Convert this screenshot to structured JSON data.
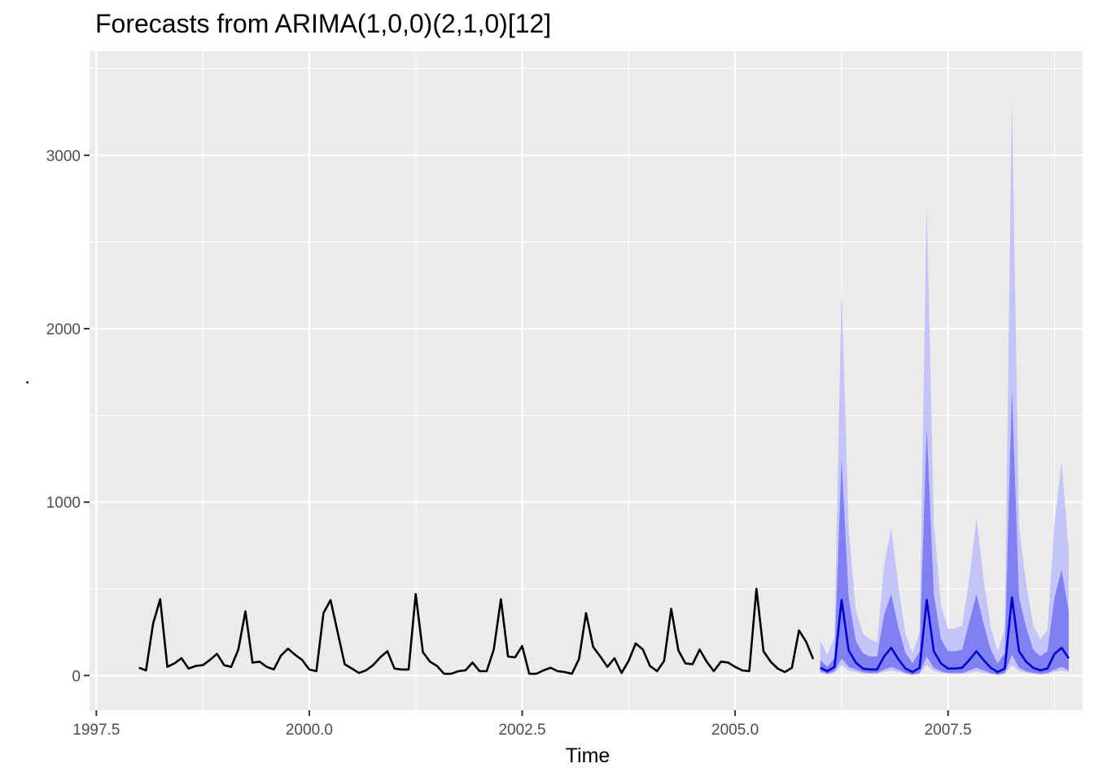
{
  "chart_data": {
    "type": "line",
    "title": "Forecasts from ARIMA(1,0,0)(2,1,0)[12]",
    "xlabel": "Time",
    "ylabel": ".",
    "xlim": [
      1997.42,
      2009.08
    ],
    "ylim": [
      -200,
      3600
    ],
    "x_ticks": [
      1997.5,
      2000.0,
      2002.5,
      2005.0,
      2007.5
    ],
    "x_tick_labels": [
      "1997.5",
      "2000.0",
      "2002.5",
      "2005.0",
      "2007.5"
    ],
    "y_ticks": [
      0,
      1000,
      2000,
      3000
    ],
    "y_tick_labels": [
      "0",
      "1000",
      "2000",
      "3000"
    ],
    "grid": true,
    "legend": "none",
    "colors": {
      "panel": "#ebebeb",
      "grid": "#ffffff",
      "history_line": "#000000",
      "forecast_line": "#0000cc",
      "band_95": "#c4c4f8",
      "band_80": "#8080f0"
    },
    "history": {
      "name": "",
      "start": 1998.0,
      "step": 0.0833333,
      "values": [
        45,
        30,
        300,
        440,
        50,
        70,
        100,
        40,
        55,
        60,
        90,
        125,
        60,
        50,
        150,
        370,
        75,
        80,
        50,
        35,
        115,
        155,
        120,
        90,
        35,
        25,
        360,
        435,
        250,
        65,
        40,
        15,
        30,
        60,
        105,
        140,
        40,
        35,
        35,
        470,
        135,
        80,
        55,
        10,
        10,
        25,
        30,
        75,
        25,
        25,
        150,
        440,
        110,
        105,
        170,
        10,
        10,
        30,
        45,
        25,
        20,
        10,
        95,
        360,
        165,
        110,
        50,
        100,
        15,
        85,
        185,
        150,
        55,
        25,
        85,
        385,
        145,
        70,
        65,
        150,
        80,
        25,
        80,
        75,
        50,
        30,
        25,
        500,
        140,
        80,
        40,
        20,
        45,
        260,
        195,
        95
      ]
    },
    "forecast": {
      "name": "",
      "start": 2006.0,
      "step": 0.0833333,
      "mean": [
        45,
        25,
        50,
        435,
        145,
        75,
        40,
        35,
        35,
        110,
        160,
        95,
        40,
        20,
        45,
        435,
        140,
        70,
        40,
        40,
        45,
        90,
        140,
        90,
        45,
        20,
        40,
        450,
        140,
        80,
        45,
        30,
        40,
        125,
        160,
        100
      ],
      "lo80": [
        25,
        10,
        25,
        100,
        50,
        35,
        20,
        15,
        15,
        35,
        50,
        35,
        15,
        5,
        15,
        110,
        45,
        25,
        15,
        15,
        15,
        30,
        45,
        30,
        15,
        5,
        15,
        120,
        45,
        25,
        15,
        10,
        15,
        35,
        50,
        30
      ],
      "hi80": [
        90,
        50,
        100,
        1250,
        450,
        200,
        130,
        110,
        110,
        350,
        470,
        280,
        130,
        70,
        140,
        1430,
        470,
        210,
        140,
        140,
        150,
        310,
        470,
        300,
        150,
        70,
        130,
        1650,
        450,
        280,
        150,
        110,
        140,
        450,
        610,
        370
      ],
      "lo95": [
        15,
        5,
        15,
        60,
        30,
        20,
        10,
        10,
        10,
        20,
        30,
        20,
        10,
        3,
        10,
        60,
        25,
        15,
        10,
        10,
        10,
        15,
        25,
        15,
        10,
        3,
        10,
        60,
        25,
        15,
        10,
        5,
        10,
        20,
        30,
        20
      ],
      "hi95": [
        200,
        120,
        220,
        2230,
        850,
        380,
        240,
        210,
        190,
        640,
        850,
        520,
        240,
        130,
        250,
        2720,
        880,
        410,
        270,
        270,
        290,
        560,
        910,
        560,
        280,
        140,
        270,
        3330,
        860,
        530,
        290,
        210,
        260,
        880,
        1230,
        720
      ]
    }
  }
}
